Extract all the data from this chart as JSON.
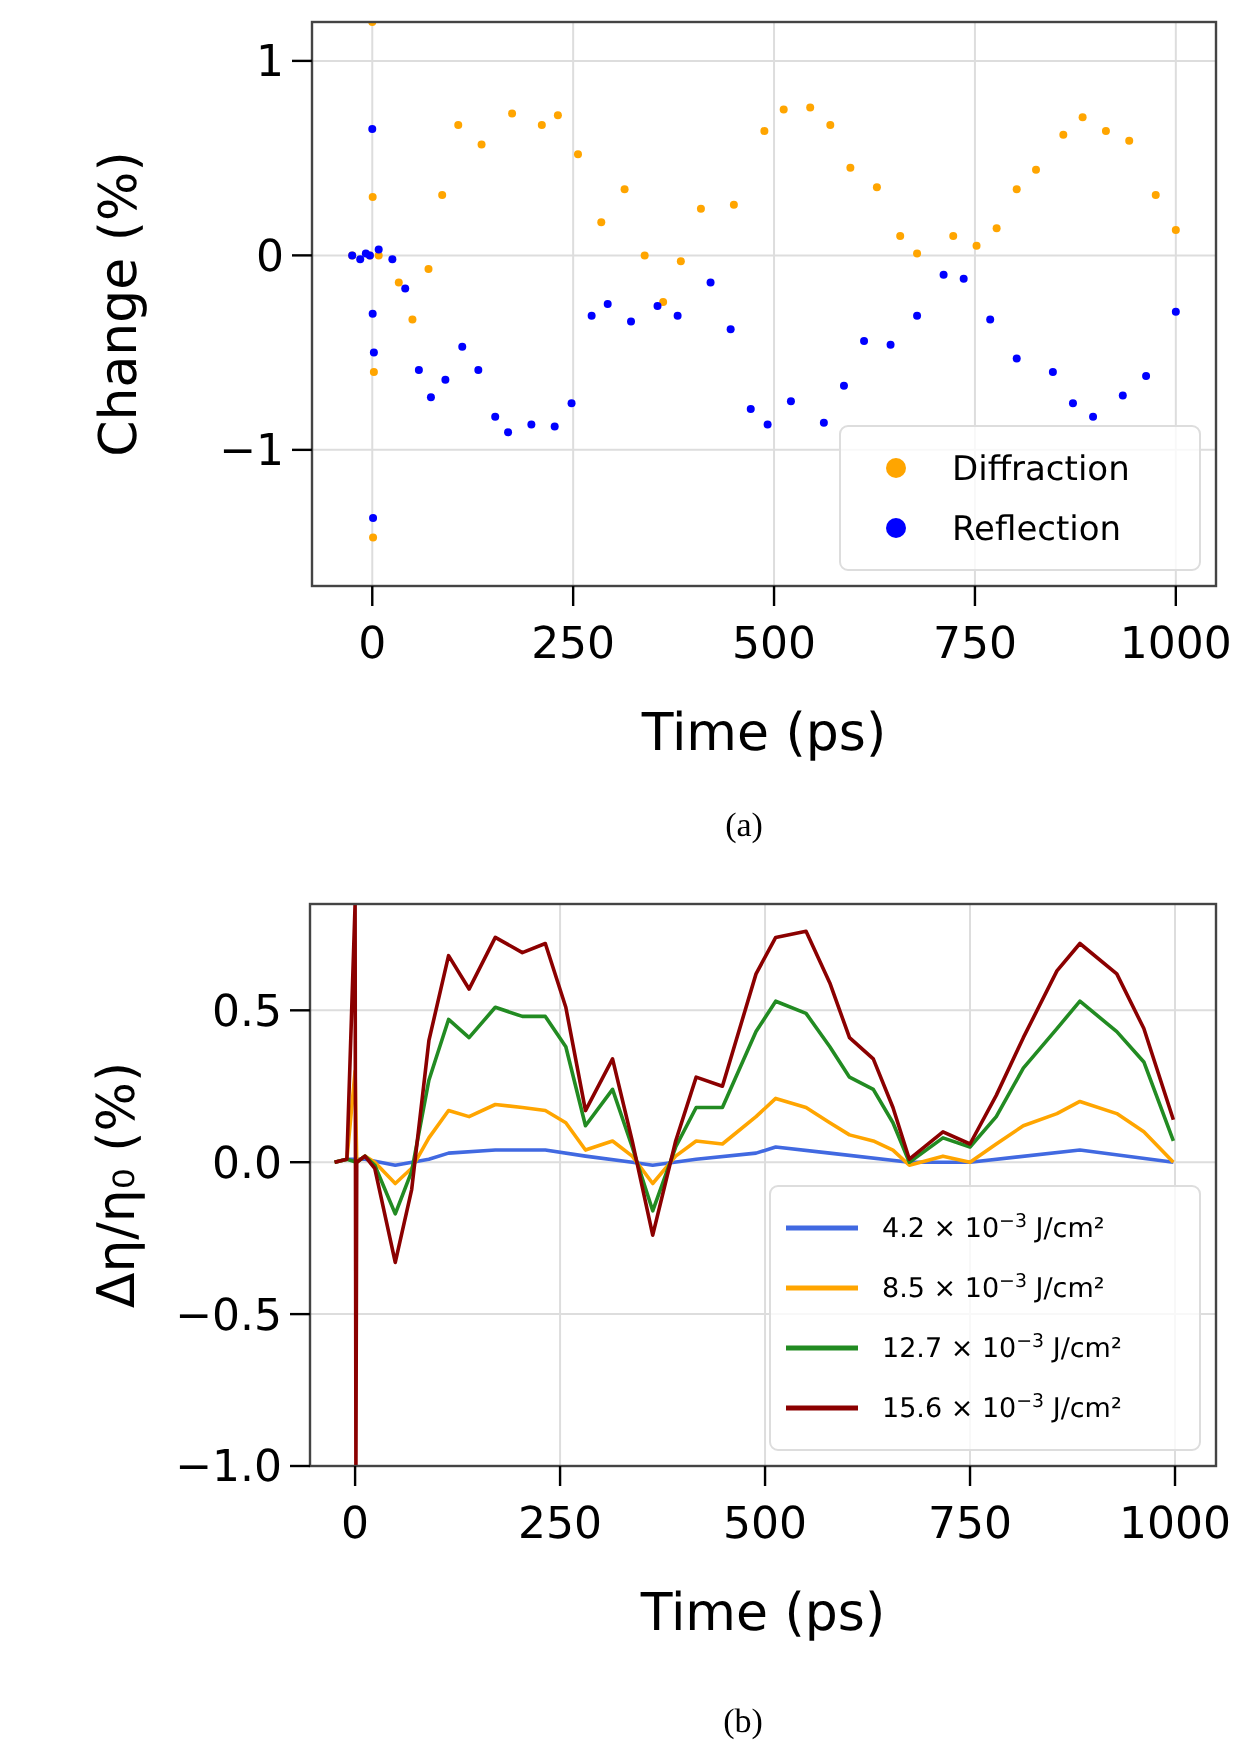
{
  "chart_data": [
    {
      "type": "scatter",
      "xlabel": "Time (ps)",
      "ylabel": "Change (%)",
      "xlim": [
        -75,
        1050
      ],
      "ylim": [
        -1.7,
        1.2
      ],
      "xticks": [
        0,
        250,
        500,
        750,
        1000
      ],
      "yticks": [
        {
          "value": -1,
          "label": "−1"
        },
        0,
        1
      ],
      "grid": true,
      "legend": "bottom right",
      "marker": "circle",
      "annotations": [
        "(a)"
      ],
      "series": [
        {
          "name": "Diffraction",
          "color": "#ffa500",
          "x": [
            -25,
            -15,
            -8,
            -3,
            0,
            0.5,
            1,
            2,
            8,
            33,
            50,
            70,
            87,
            107,
            136,
            174,
            211,
            231,
            256,
            285,
            314,
            339,
            362,
            384,
            409,
            450,
            488,
            512,
            545,
            570,
            595,
            628,
            657,
            678,
            723,
            752,
            777,
            802,
            826,
            860,
            884,
            913,
            942,
            975,
            1000
          ],
          "values": [
            0,
            null,
            null,
            0,
            1.2,
            0.3,
            -1.45,
            -0.6,
            0,
            -0.14,
            -0.33,
            -0.07,
            0.31,
            0.67,
            0.57,
            0.73,
            0.67,
            0.72,
            0.52,
            0.17,
            0.34,
            0,
            -0.24,
            -0.03,
            0.24,
            0.26,
            0.64,
            0.75,
            0.76,
            0.67,
            0.45,
            0.35,
            0.1,
            0.01,
            0.1,
            0.05,
            0.14,
            0.34,
            0.44,
            0.62,
            0.71,
            0.64,
            0.59,
            0.31,
            0.13
          ]
        },
        {
          "name": "Reflection",
          "color": "#0000ff",
          "x": [
            -25,
            -15,
            -8,
            -3,
            0,
            0.5,
            1,
            2,
            8,
            25,
            41,
            58,
            73,
            91,
            112,
            132,
            153,
            169,
            198,
            227,
            248,
            273,
            293,
            322,
            355,
            380,
            421,
            446,
            471,
            492,
            521,
            562,
            587,
            612,
            645,
            678,
            711,
            736,
            769,
            802,
            847,
            872,
            897,
            934,
            963,
            1000
          ],
          "values": [
            0,
            -0.02,
            0.01,
            0,
            0.65,
            -0.3,
            -1.35,
            -0.5,
            0.03,
            -0.02,
            -0.17,
            -0.59,
            -0.73,
            -0.64,
            -0.47,
            -0.59,
            -0.83,
            -0.91,
            -0.87,
            -0.88,
            -0.76,
            -0.31,
            -0.25,
            -0.34,
            -0.26,
            -0.31,
            -0.14,
            -0.38,
            -0.79,
            -0.87,
            -0.75,
            -0.86,
            -0.67,
            -0.44,
            -0.46,
            -0.31,
            -0.1,
            -0.12,
            -0.33,
            -0.53,
            -0.6,
            -0.76,
            -0.83,
            -0.72,
            -0.62,
            -0.29
          ]
        }
      ]
    },
    {
      "type": "line",
      "xlabel": "Time (ps)",
      "ylabel": "Δη/η₀ (%)",
      "xlim": [
        -55,
        1050
      ],
      "ylim": [
        -1.0,
        0.85
      ],
      "xticks": [
        0,
        250,
        500,
        750,
        1000
      ],
      "yticks": [
        {
          "value": -1,
          "label": "−1.0"
        },
        {
          "value": -0.5,
          "label": "−0.5"
        },
        {
          "value": 0,
          "label": "0.0"
        },
        {
          "value": 0.5,
          "label": "0.5"
        }
      ],
      "grid": true,
      "legend": "bottom right",
      "annotations": [
        "(b)"
      ],
      "series": [
        {
          "name": "4.2 × 10$^{−3}$ J/cm²",
          "color": "#4169e1",
          "x": [
            -25,
            -10,
            12,
            49,
            90,
            114,
            171,
            232,
            281,
            338,
            363,
            416,
            489,
            513,
            579,
            676,
            750,
            884,
            998
          ],
          "values": [
            0,
            0.01,
            0.01,
            -0.01,
            0.01,
            0.03,
            0.04,
            0.04,
            0.02,
            0,
            -0.01,
            0.01,
            0.03,
            0.05,
            0.03,
            0,
            0,
            0.04,
            0
          ]
        },
        {
          "name": "8.5 × 10$^{−3}$ J/cm²",
          "color": "#ffa500",
          "x": [
            -25,
            -10,
            0,
            1,
            2,
            12,
            24,
            49,
            69,
            90,
            114,
            139,
            171,
            204,
            232,
            257,
            281,
            314,
            338,
            363,
            391,
            416,
            448,
            489,
            513,
            550,
            579,
            603,
            632,
            656,
            676,
            717,
            750,
            782,
            815,
            856,
            884,
            929,
            962,
            998
          ],
          "values": [
            0,
            0.01,
            0.3,
            null,
            0,
            0.02,
            0,
            -0.07,
            -0.02,
            0.08,
            0.17,
            0.15,
            0.19,
            0.18,
            0.17,
            0.13,
            0.04,
            0.07,
            0.02,
            -0.07,
            0.02,
            0.07,
            0.06,
            0.15,
            0.21,
            0.18,
            0.13,
            0.09,
            0.07,
            0.04,
            -0.01,
            0.02,
            0,
            0.06,
            0.12,
            0.16,
            0.2,
            0.16,
            0.1,
            0
          ]
        },
        {
          "name": "12.7 × 10$^{−3}$ J/cm²",
          "color": "#228b22",
          "x": [
            -25,
            -10,
            0,
            1,
            2,
            12,
            24,
            49,
            69,
            90,
            114,
            139,
            171,
            204,
            232,
            257,
            281,
            314,
            338,
            363,
            391,
            416,
            448,
            489,
            513,
            550,
            579,
            603,
            632,
            656,
            676,
            717,
            750,
            782,
            815,
            856,
            884,
            929,
            962,
            998
          ],
          "values": [
            0,
            0.01,
            null,
            null,
            0,
            0.02,
            -0.01,
            -0.17,
            -0.03,
            0.27,
            0.47,
            0.41,
            0.51,
            0.48,
            0.48,
            0.38,
            0.12,
            0.24,
            0.05,
            -0.16,
            0.05,
            0.18,
            0.18,
            0.43,
            0.53,
            0.49,
            0.38,
            0.28,
            0.24,
            0.13,
            0,
            0.08,
            0.05,
            0.15,
            0.31,
            0.44,
            0.53,
            0.43,
            0.33,
            0.07
          ]
        },
        {
          "name": "15.6 × 10$^{−3}$ J/cm²",
          "color": "#8b0000",
          "x": [
            -25,
            -10,
            0,
            1,
            2,
            12,
            24,
            49,
            69,
            90,
            114,
            139,
            171,
            204,
            232,
            257,
            281,
            314,
            338,
            363,
            391,
            416,
            448,
            489,
            513,
            550,
            579,
            603,
            632,
            656,
            676,
            717,
            750,
            782,
            815,
            856,
            884,
            929,
            962,
            998
          ],
          "values": [
            0,
            0.01,
            0.85,
            -1.0,
            0,
            0.02,
            -0.02,
            -0.33,
            -0.09,
            0.4,
            0.68,
            0.57,
            0.74,
            0.69,
            0.72,
            0.51,
            0.17,
            0.34,
            0.07,
            -0.24,
            0.07,
            0.28,
            0.25,
            0.62,
            0.74,
            0.76,
            0.59,
            0.41,
            0.34,
            0.18,
            0.01,
            0.1,
            0.06,
            0.22,
            0.41,
            0.63,
            0.72,
            0.62,
            0.44,
            0.14
          ]
        }
      ]
    }
  ]
}
